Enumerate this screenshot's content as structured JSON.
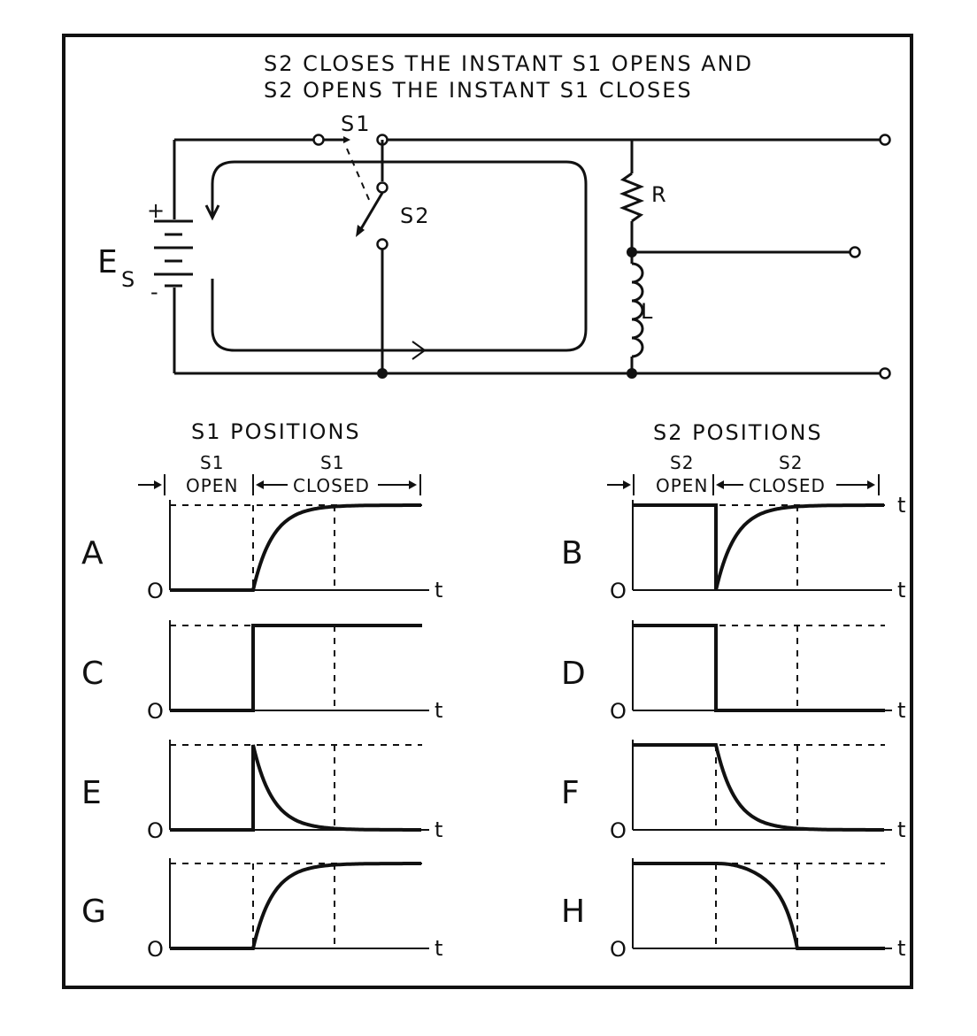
{
  "note": {
    "line1": "S2 CLOSES THE INSTANT S1 OPENS AND",
    "line2": "S2 OPENS THE INSTANT S1 CLOSES"
  },
  "circuit": {
    "s1": "S1",
    "s2": "S2",
    "r": "R",
    "l": "L",
    "es_main": "E",
    "es_sub": "S",
    "plus": "+",
    "minus": "-"
  },
  "left_panel": {
    "title": "S1 POSITIONS",
    "open_label_top": "S1",
    "open_label_bottom": "OPEN",
    "closed_label_top": "S1",
    "closed_label_bottom": "CLOSED"
  },
  "right_panel": {
    "title": "S2 POSITIONS",
    "open_label_top": "S2",
    "open_label_bottom": "OPEN",
    "closed_label_top": "S2",
    "closed_label_bottom": "CLOSED"
  },
  "axis": {
    "origin": "O",
    "time": "t"
  },
  "waveforms": [
    {
      "id": "A",
      "label": "A",
      "column": "left",
      "row": 0,
      "shape": "rise-exp"
    },
    {
      "id": "B",
      "label": "B",
      "column": "right",
      "row": 0,
      "shape": "high-drop-rise-exp"
    },
    {
      "id": "C",
      "label": "C",
      "column": "left",
      "row": 1,
      "shape": "step-up"
    },
    {
      "id": "D",
      "label": "D",
      "column": "right",
      "row": 1,
      "shape": "step-down"
    },
    {
      "id": "E",
      "label": "E",
      "column": "left",
      "row": 2,
      "shape": "spike-decay"
    },
    {
      "id": "F",
      "label": "F",
      "column": "right",
      "row": 2,
      "shape": "high-decay"
    },
    {
      "id": "G",
      "label": "G",
      "column": "left",
      "row": 3,
      "shape": "rise-exp"
    },
    {
      "id": "H",
      "label": "H",
      "column": "right",
      "row": 3,
      "shape": "high-fall"
    }
  ]
}
